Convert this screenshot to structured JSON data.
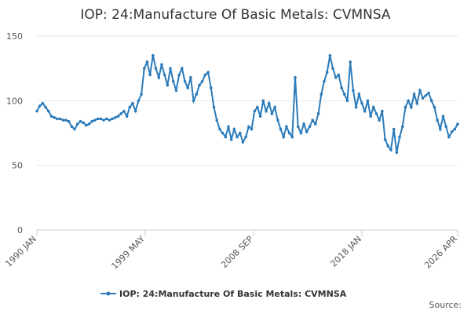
{
  "chart_data": {
    "type": "line",
    "title": "IOP: 24:Manufacture Of Basic Metals: CVMNSA",
    "source": "Source:",
    "x": [
      1990,
      1990.25,
      1990.5,
      1990.75,
      1991,
      1991.25,
      1991.5,
      1991.75,
      1992,
      1992.25,
      1992.5,
      1992.75,
      1993,
      1993.25,
      1993.5,
      1993.75,
      1994,
      1994.25,
      1994.5,
      1994.75,
      1995,
      1995.25,
      1995.5,
      1995.75,
      1996,
      1996.25,
      1996.5,
      1996.75,
      1997,
      1997.25,
      1997.5,
      1997.75,
      1998,
      1998.25,
      1998.5,
      1998.75,
      1999,
      1999.25,
      1999.5,
      1999.75,
      2000,
      2000.25,
      2000.5,
      2000.75,
      2001,
      2001.25,
      2001.5,
      2001.75,
      2002,
      2002.25,
      2002.5,
      2002.75,
      2003,
      2003.25,
      2003.5,
      2003.75,
      2004,
      2004.25,
      2004.5,
      2004.75,
      2005,
      2005.25,
      2005.5,
      2005.75,
      2006,
      2006.25,
      2006.5,
      2006.75,
      2007,
      2007.25,
      2007.5,
      2007.75,
      2008,
      2008.25,
      2008.5,
      2008.75,
      2009,
      2009.25,
      2009.5,
      2009.75,
      2010,
      2010.25,
      2010.5,
      2010.75,
      2011,
      2011.25,
      2011.5,
      2011.75,
      2012,
      2012.25,
      2012.5,
      2012.75,
      2013,
      2013.25,
      2013.5,
      2013.75,
      2014,
      2014.25,
      2014.5,
      2014.75,
      2015,
      2015.25,
      2015.5,
      2015.75,
      2016,
      2016.25,
      2016.5,
      2016.75,
      2017,
      2017.25,
      2017.5,
      2017.75,
      2018,
      2018.25,
      2018.5,
      2018.75,
      2019,
      2019.25,
      2019.5,
      2019.75,
      2020,
      2020.25,
      2020.5,
      2020.75,
      2021,
      2021.25,
      2021.5,
      2021.75,
      2022,
      2022.25,
      2022.5,
      2022.75,
      2023,
      2023.25,
      2023.5,
      2023.75,
      2024,
      2024.25,
      2024.5,
      2024.75,
      2025,
      2025.25,
      2025.5,
      2025.75,
      2026,
      2026.25
    ],
    "series": [
      {
        "name": "IOP: 24:Manufacture Of Basic Metals: CVMNSA",
        "color": "#2b7bba",
        "values": [
          92,
          96,
          98,
          95,
          92,
          88,
          87,
          86,
          86,
          85,
          85,
          84,
          80,
          78,
          82,
          84,
          83,
          81,
          82,
          84,
          85,
          86,
          86,
          85,
          86,
          85,
          86,
          87,
          88,
          90,
          92,
          88,
          95,
          98,
          92,
          100,
          105,
          125,
          130,
          120,
          135,
          125,
          118,
          128,
          120,
          112,
          125,
          115,
          108,
          120,
          125,
          115,
          110,
          118,
          100,
          105,
          112,
          115,
          120,
          122,
          110,
          95,
          85,
          78,
          75,
          72,
          80,
          70,
          78,
          72,
          75,
          68,
          72,
          80,
          78,
          92,
          95,
          88,
          100,
          92,
          98,
          90,
          95,
          85,
          78,
          72,
          80,
          75,
          72,
          118,
          80,
          75,
          82,
          76,
          80,
          85,
          82,
          90,
          105,
          115,
          122,
          135,
          125,
          118,
          120,
          110,
          105,
          100,
          130,
          108,
          95,
          105,
          98,
          92,
          100,
          88,
          95,
          90,
          85,
          92,
          70,
          65,
          62,
          78,
          60,
          72,
          80,
          95,
          100,
          95,
          105,
          98,
          108,
          102,
          104,
          106,
          100,
          95,
          85,
          78,
          88,
          80,
          72,
          76,
          78,
          82
        ]
      }
    ],
    "xlim": [
      1990,
      2026.25
    ],
    "xticks": [
      {
        "value": 1990,
        "label": "1990 JAN"
      },
      {
        "value": 1999.333,
        "label": "1999 MAY"
      },
      {
        "value": 2008.667,
        "label": "2008 SEP"
      },
      {
        "value": 2018,
        "label": "2018 JAN"
      },
      {
        "value": 2026.25,
        "label": "2026 APR"
      }
    ],
    "ylim": [
      0,
      150
    ],
    "yticks": [
      0,
      50,
      100,
      150
    ],
    "grid": true
  }
}
